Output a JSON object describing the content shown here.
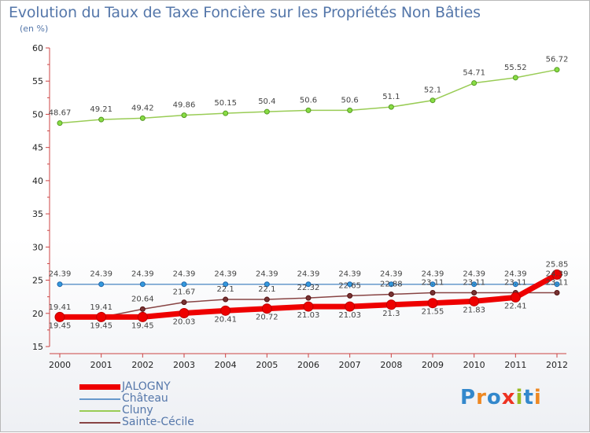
{
  "title": "Evolution du Taux de Taxe Foncière sur les Propriétés Non Bâties",
  "unit": "(en %)",
  "logo": "Proxiti",
  "chart_data": {
    "type": "line",
    "title": "Evolution du Taux de Taxe Foncière sur les Propriétés Non Bâties",
    "ylabel": "(en %)",
    "x": [
      "2000",
      "2001",
      "2002",
      "2003",
      "2004",
      "2005",
      "2006",
      "2007",
      "2008",
      "2009",
      "2010",
      "2011",
      "2012"
    ],
    "ylim": [
      15,
      60
    ],
    "yticks": [
      15,
      20,
      25,
      30,
      35,
      40,
      45,
      50,
      55,
      60
    ],
    "grid": false,
    "legend_position": "bottom-left",
    "series": [
      {
        "name": "JALOGNY",
        "color": "#ee0000",
        "values": [
          19.45,
          19.45,
          19.45,
          20.03,
          20.41,
          20.72,
          21.03,
          21.03,
          21.3,
          21.55,
          21.83,
          22.41,
          25.85
        ],
        "labels": [
          "19.45",
          "19.45",
          "19.45",
          "20.03",
          "20.41",
          "20.72",
          "21.03",
          "21.03",
          "21.3",
          "21.55",
          "21.83",
          "22.41",
          "25.85"
        ]
      },
      {
        "name": "Château",
        "color": "#6699cc",
        "values": [
          24.39,
          24.39,
          24.39,
          24.39,
          24.39,
          24.39,
          24.39,
          24.39,
          24.39,
          24.39,
          24.39,
          24.39,
          24.39
        ],
        "labels": [
          "24.39",
          "24.39",
          "24.39",
          "24.39",
          "24.39",
          "24.39",
          "24.39",
          "24.39",
          "24.39",
          "24.39",
          "24.39",
          "24.39",
          "24.39"
        ]
      },
      {
        "name": "Cluny",
        "color": "#99cc55",
        "values": [
          48.67,
          49.21,
          49.42,
          49.86,
          50.15,
          50.4,
          50.6,
          50.6,
          51.1,
          52.1,
          54.71,
          55.52,
          56.72
        ],
        "labels": [
          "48.67",
          "49.21",
          "49.42",
          "49.86",
          "50.15",
          "50.4",
          "50.6",
          "50.6",
          "51.1",
          "52.1",
          "54.71",
          "55.52",
          "56.72"
        ]
      },
      {
        "name": "Sainte-Cécile",
        "color": "#884444",
        "values": [
          19.41,
          19.41,
          20.64,
          21.67,
          22.1,
          22.1,
          22.32,
          22.65,
          22.88,
          23.11,
          23.11,
          23.11,
          23.11
        ],
        "labels": [
          "19.41",
          "19.41",
          "20.64",
          "21.67",
          "22.1",
          "22.1",
          "22.32",
          "22.65",
          "22.88",
          "23.11",
          "23.11",
          "23.11",
          "23.11"
        ]
      }
    ]
  }
}
